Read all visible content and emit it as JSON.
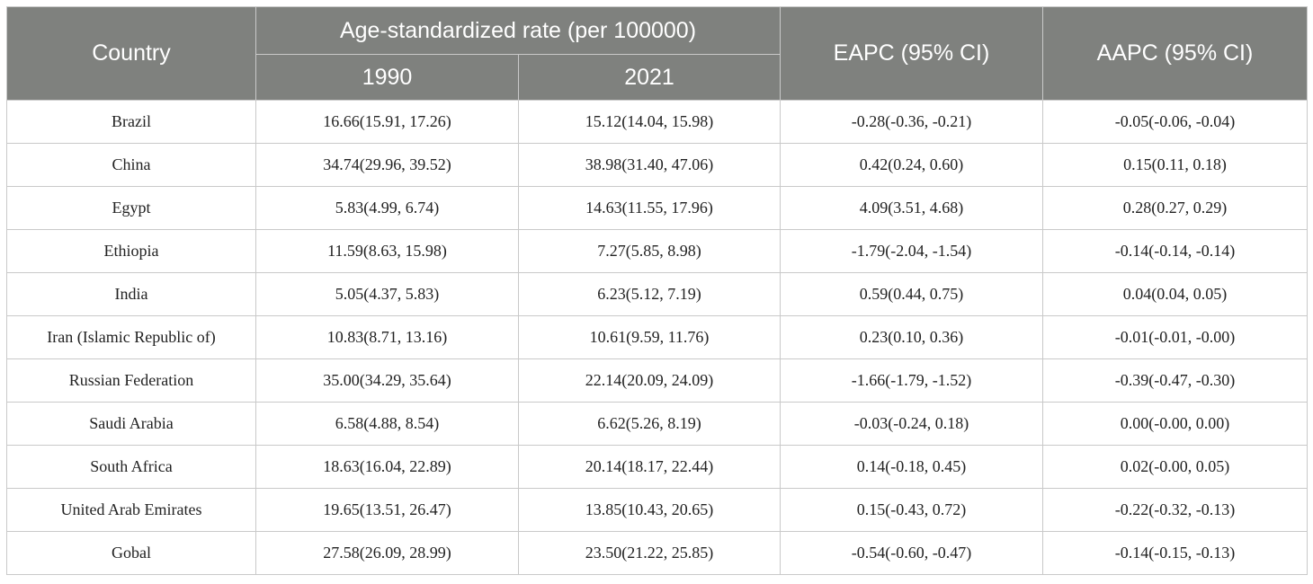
{
  "header": {
    "country": "Country",
    "asr_group": "Age-standardized rate (per 100000)",
    "year1": "1990",
    "year2": "2021",
    "eapc": "EAPC (95% CI)",
    "aapc": "AAPC (95% CI)"
  },
  "rows": [
    {
      "country": "Brazil",
      "y1990": "16.66(15.91, 17.26)",
      "y2021": "15.12(14.04, 15.98)",
      "eapc": "-0.28(-0.36, -0.21)",
      "aapc": "-0.05(-0.06, -0.04)"
    },
    {
      "country": "China",
      "y1990": "34.74(29.96, 39.52)",
      "y2021": "38.98(31.40, 47.06)",
      "eapc": "0.42(0.24, 0.60)",
      "aapc": "0.15(0.11, 0.18)"
    },
    {
      "country": "Egypt",
      "y1990": "5.83(4.99, 6.74)",
      "y2021": "14.63(11.55, 17.96)",
      "eapc": "4.09(3.51, 4.68)",
      "aapc": "0.28(0.27, 0.29)"
    },
    {
      "country": "Ethiopia",
      "y1990": "11.59(8.63, 15.98)",
      "y2021": "7.27(5.85, 8.98)",
      "eapc": "-1.79(-2.04, -1.54)",
      "aapc": "-0.14(-0.14, -0.14)"
    },
    {
      "country": "India",
      "y1990": "5.05(4.37, 5.83)",
      "y2021": "6.23(5.12, 7.19)",
      "eapc": "0.59(0.44, 0.75)",
      "aapc": "0.04(0.04, 0.05)"
    },
    {
      "country": "Iran (Islamic Republic of)",
      "y1990": "10.83(8.71, 13.16)",
      "y2021": "10.61(9.59, 11.76)",
      "eapc": "0.23(0.10, 0.36)",
      "aapc": "-0.01(-0.01, -0.00)"
    },
    {
      "country": "Russian Federation",
      "y1990": "35.00(34.29, 35.64)",
      "y2021": "22.14(20.09, 24.09)",
      "eapc": "-1.66(-1.79, -1.52)",
      "aapc": "-0.39(-0.47, -0.30)"
    },
    {
      "country": "Saudi Arabia",
      "y1990": "6.58(4.88, 8.54)",
      "y2021": "6.62(5.26, 8.19)",
      "eapc": "-0.03(-0.24, 0.18)",
      "aapc": "0.00(-0.00, 0.00)"
    },
    {
      "country": "South Africa",
      "y1990": "18.63(16.04, 22.89)",
      "y2021": "20.14(18.17, 22.44)",
      "eapc": "0.14(-0.18, 0.45)",
      "aapc": "0.02(-0.00, 0.05)"
    },
    {
      "country": "United Arab Emirates",
      "y1990": "19.65(13.51, 26.47)",
      "y2021": "13.85(10.43, 20.65)",
      "eapc": "0.15(-0.43, 0.72)",
      "aapc": "-0.22(-0.32, -0.13)"
    },
    {
      "country": "Gobal",
      "y1990": "27.58(26.09, 28.99)",
      "y2021": "23.50(21.22, 25.85)",
      "eapc": "-0.54(-0.60, -0.47)",
      "aapc": "-0.14(-0.15, -0.13)"
    }
  ],
  "colors": {
    "header_bg": "#7f817e",
    "header_text": "#ffffff",
    "grid": "#c9c9c9"
  }
}
